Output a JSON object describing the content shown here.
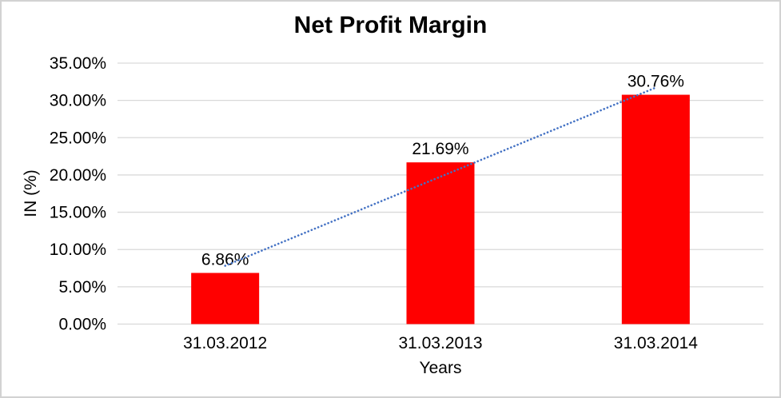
{
  "chart_data": {
    "type": "bar",
    "title": "Net Profit Margin",
    "xlabel": "Years",
    "ylabel": "IN (%)",
    "categories": [
      "31.03.2012",
      "31.03.2013",
      "31.03.2014"
    ],
    "values": [
      6.86,
      21.69,
      30.76
    ],
    "data_labels": [
      "6.86%",
      "21.69%",
      "30.76%"
    ],
    "ylim": [
      0,
      35
    ],
    "y_tick_step": 5,
    "y_tick_labels": [
      "0.00%",
      "5.00%",
      "10.00%",
      "15.00%",
      "20.00%",
      "25.00%",
      "30.00%",
      "35.00%"
    ],
    "grid": true,
    "legend_position": "none",
    "bar_color": "#ff0000",
    "gridline_color": "#d9d9d9",
    "axis_line_color": "#d9d9d9",
    "text_color": "#000000",
    "trendline": {
      "type": "linear",
      "style": "dotted",
      "color": "#4472c4"
    }
  }
}
